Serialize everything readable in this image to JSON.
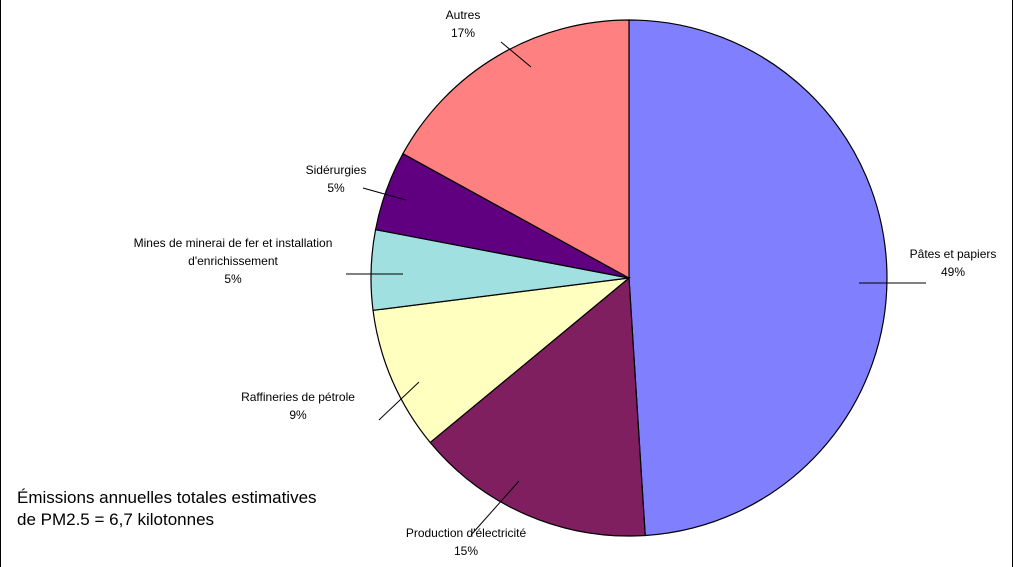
{
  "chart_data": {
    "type": "pie",
    "start_angle_deg": 0,
    "direction": "clockwise",
    "slices": [
      {
        "label_lines": [
          "Pâtes et papiers"
        ],
        "percent_label": "49%",
        "value": 49,
        "color": "#8080FF"
      },
      {
        "label_lines": [
          "Production d'électricité"
        ],
        "percent_label": "15%",
        "value": 15,
        "color": "#7F1F5F"
      },
      {
        "label_lines": [
          "Raffineries de pétrole"
        ],
        "percent_label": "9%",
        "value": 9,
        "color": "#FFFFC0"
      },
      {
        "label_lines": [
          "Mines de minerai de fer et installation",
          "d'enrichissement"
        ],
        "percent_label": "5%",
        "value": 5,
        "color": "#A0E0E0"
      },
      {
        "label_lines": [
          "Sidérurgies"
        ],
        "percent_label": "5%",
        "value": 5,
        "color": "#600080"
      },
      {
        "label_lines": [
          "Autres"
        ],
        "percent_label": "17%",
        "value": 17,
        "color": "#FF8080"
      }
    ]
  },
  "note": {
    "line1": "Émissions annuelles totales estimatives",
    "line2": "de PM2.5  = 6,7 kilotonnes"
  }
}
